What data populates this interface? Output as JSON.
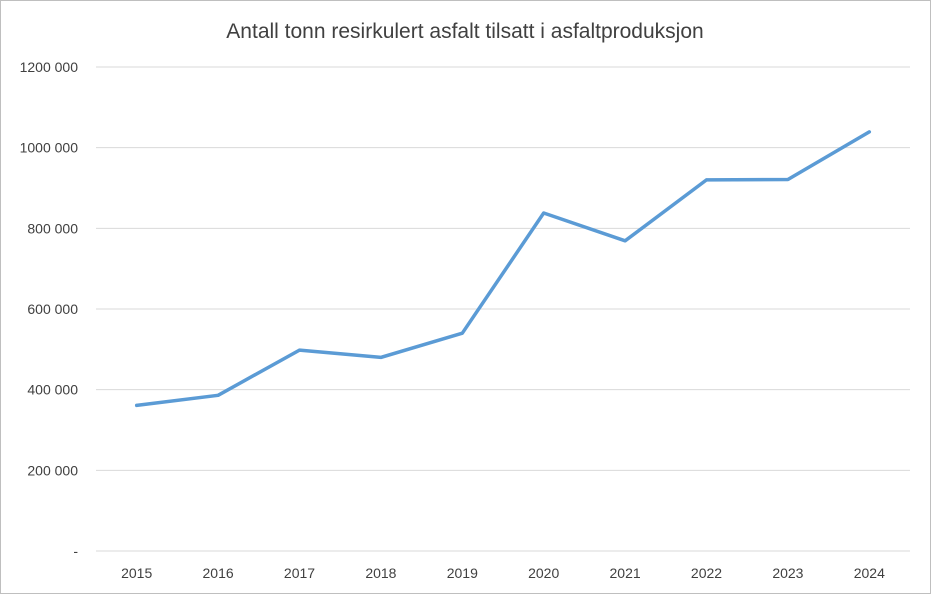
{
  "chart_data": {
    "type": "line",
    "title": "Antall tonn resirkulert asfalt tilsatt i asfaltproduksjon",
    "xlabel": "",
    "ylabel": "",
    "categories": [
      "2015",
      "2016",
      "2017",
      "2018",
      "2019",
      "2020",
      "2021",
      "2022",
      "2023",
      "2024"
    ],
    "series": [
      {
        "values": [
          361000,
          386000,
          498000,
          480000,
          540000,
          838000,
          769000,
          920000,
          921000,
          1039000
        ]
      }
    ],
    "ylim": [
      0,
      1200000
    ],
    "yticks": [
      {
        "value": 0,
        "label": "-"
      },
      {
        "value": 200000,
        "label": "200 000"
      },
      {
        "value": 400000,
        "label": "400 000"
      },
      {
        "value": 600000,
        "label": "600 000"
      },
      {
        "value": 800000,
        "label": "800 000"
      },
      {
        "value": 1000000,
        "label": "1000 000"
      },
      {
        "value": 1200000,
        "label": "1200 000"
      }
    ],
    "grid": true,
    "legend": "none",
    "colors": {
      "series": "#5b9bd5",
      "grid": "#d9d9d9",
      "text": "#404040"
    }
  }
}
